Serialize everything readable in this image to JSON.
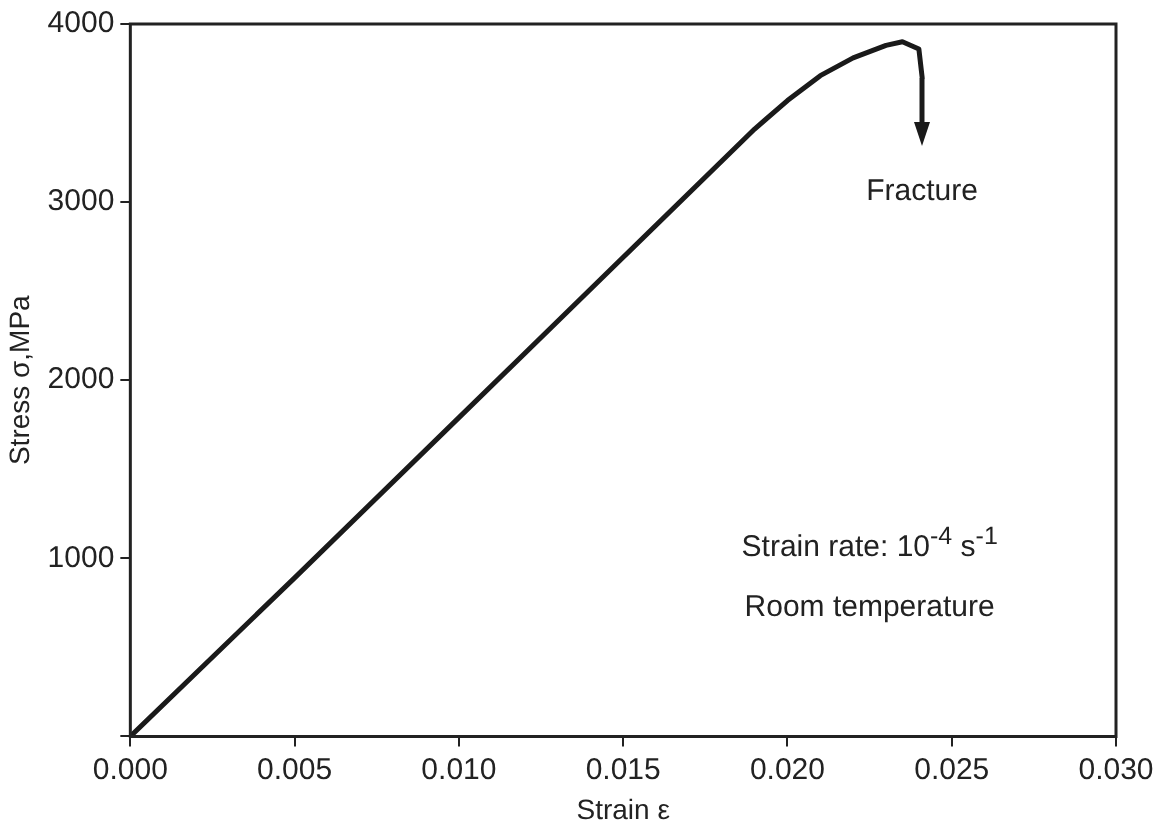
{
  "chart_data": {
    "type": "line",
    "xlabel": "Strain ε",
    "ylabel": "Stress σ,MPa",
    "x": [
      0,
      0.005,
      0.01,
      0.015,
      0.019,
      0.02,
      0.021,
      0.022,
      0.023,
      0.0235,
      0.024,
      0.0241
    ],
    "values": [
      0,
      890,
      1790,
      2690,
      3410,
      3570,
      3710,
      3810,
      3880,
      3900,
      3860,
      3700
    ],
    "color": "#1a1a1a",
    "marker": "none",
    "line_style": "solid",
    "grid": false,
    "legend": false,
    "xlim": [
      0,
      0.03
    ],
    "xticks": [
      {
        "value": 0,
        "label": "0.000"
      },
      {
        "value": 0.005,
        "label": "0.005"
      },
      {
        "value": 0.01,
        "label": "0.010"
      },
      {
        "value": 0.015,
        "label": "0.015"
      },
      {
        "value": 0.02,
        "label": "0.020"
      },
      {
        "value": 0.025,
        "label": "0.025"
      },
      {
        "value": 0.03,
        "label": "0.030"
      }
    ],
    "ylim": [
      0,
      4000
    ],
    "yticks": [
      {
        "value": 0,
        "label": null
      },
      1000,
      2000,
      3000,
      4000
    ],
    "annotations": [
      "Fracture",
      "Strain rate: 10$^{-4}$ s$^{-1}$",
      "Room temperature"
    ]
  }
}
